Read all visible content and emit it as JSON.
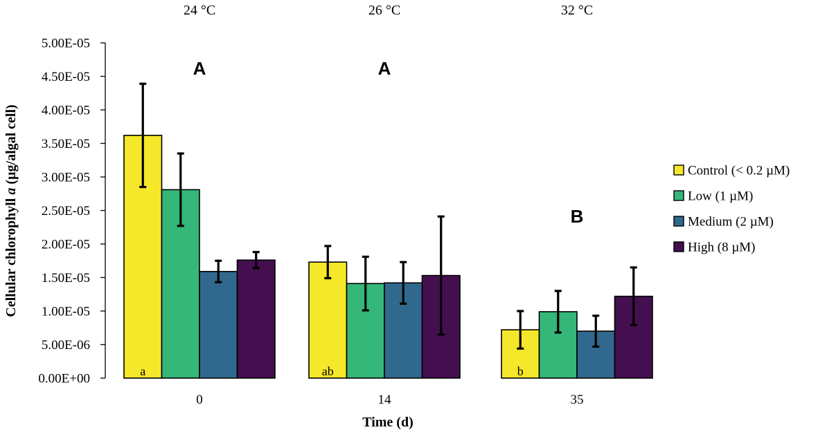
{
  "chart_data": {
    "type": "bar",
    "title": "",
    "ylabel_prefix": "Cellular chlorophyll ",
    "ylabel_italic": "a",
    "ylabel_suffix": " (µg/algal cell)",
    "xlabel": "Time (d)",
    "ylim": [
      0,
      5e-05
    ],
    "ytick_values": [
      0,
      5e-06,
      1e-05,
      1.5e-05,
      2e-05,
      2.5e-05,
      3e-05,
      3.5e-05,
      4e-05,
      4.5e-05,
      5e-05
    ],
    "ytick_labels": [
      "0.00E+00",
      "5.00E-06",
      "1.00E-05",
      "1.50E-05",
      "2.00E-05",
      "2.50E-05",
      "3.00E-05",
      "3.50E-05",
      "4.00E-05",
      "4.50E-05",
      "5.00E-05"
    ],
    "categories": [
      "0",
      "14",
      "35"
    ],
    "temperatures": [
      "24 °C",
      "26 °C",
      "32 °C"
    ],
    "group_letters": [
      "A",
      "A",
      "B"
    ],
    "control_letters": [
      "a",
      "ab",
      "b"
    ],
    "series": [
      {
        "name": "Control (< 0.2 µM)",
        "color": "#f5e82a",
        "values": [
          3.62e-05,
          1.73e-05,
          7.2e-06
        ],
        "errors": [
          7.7e-06,
          2.4e-06,
          2.8e-06
        ]
      },
      {
        "name": "Low (1 µM)",
        "color": "#35b779",
        "values": [
          2.81e-05,
          1.41e-05,
          9.9e-06
        ],
        "errors": [
          5.4e-06,
          4e-06,
          3.1e-06
        ]
      },
      {
        "name": "Medium (2 µM)",
        "color": "#31688e",
        "values": [
          1.59e-05,
          1.42e-05,
          7e-06
        ],
        "errors": [
          1.6e-06,
          3.1e-06,
          2.3e-06
        ]
      },
      {
        "name": "High (8 µM)",
        "color": "#440f4f",
        "values": [
          1.76e-05,
          1.53e-05,
          1.22e-05
        ],
        "errors": [
          1.2e-06,
          8.8e-06,
          4.3e-06
        ]
      }
    ]
  }
}
